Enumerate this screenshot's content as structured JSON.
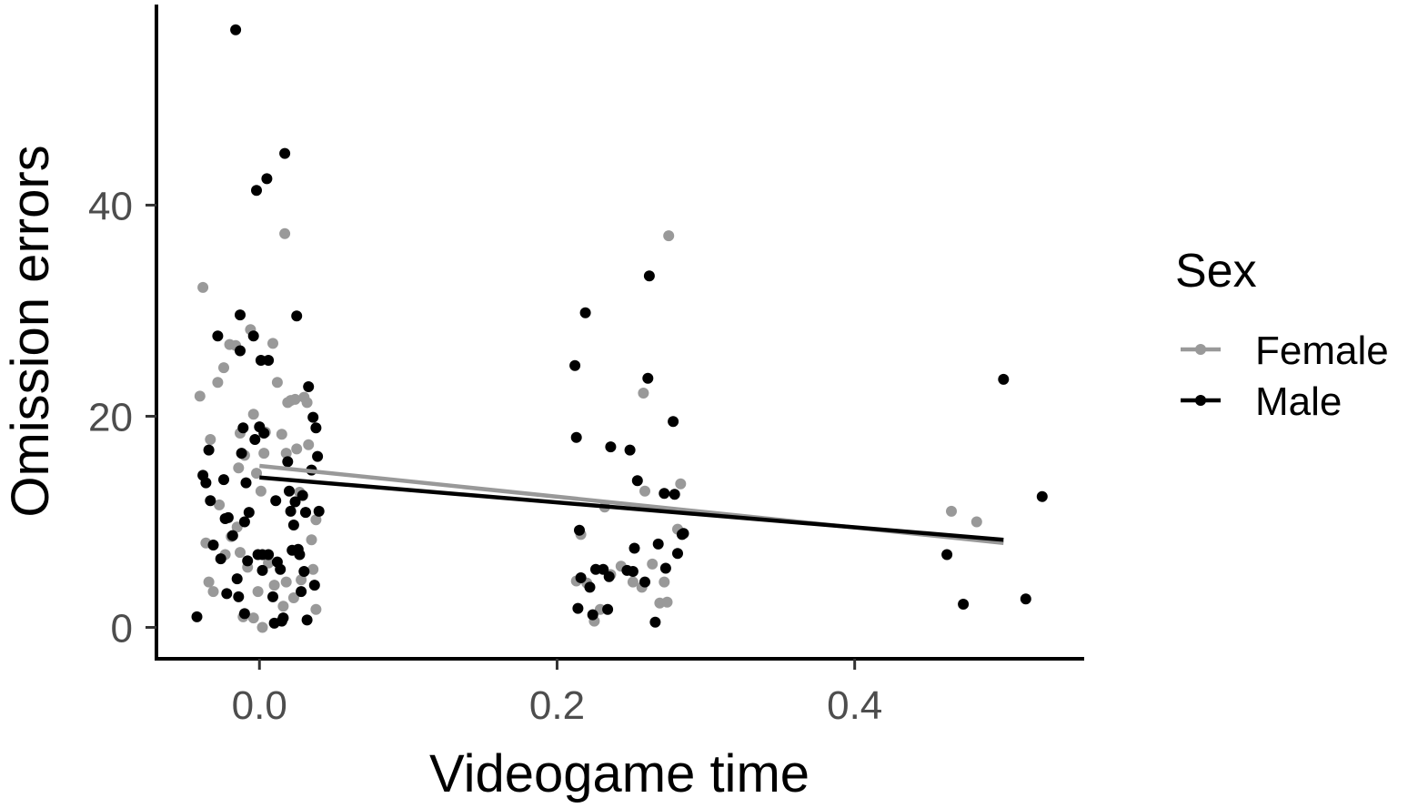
{
  "chart_data": {
    "type": "scatter",
    "title": "",
    "xlabel": "Videogame time",
    "ylabel": "Omission errors",
    "xlim": [
      -0.068,
      0.553
    ],
    "ylim": [
      -2.8,
      59.0
    ],
    "xticks": [
      {
        "value": 0.0,
        "label": "0.0"
      },
      {
        "value": 0.2,
        "label": "0.2"
      },
      {
        "value": 0.4,
        "label": "0.4"
      }
    ],
    "yticks": [
      {
        "value": 0,
        "label": "0"
      },
      {
        "value": 20,
        "label": "20"
      },
      {
        "value": 40,
        "label": "40"
      }
    ],
    "grid": false,
    "legend": {
      "title": "Sex",
      "position": "right"
    },
    "series": [
      {
        "name": "Female",
        "color": "#999999",
        "points": [
          [
            -0.038,
            32.2
          ],
          [
            -0.04,
            21.9
          ],
          [
            -0.033,
            17.8
          ],
          [
            -0.028,
            23.2
          ],
          [
            -0.024,
            24.6
          ],
          [
            -0.02,
            26.8
          ],
          [
            -0.016,
            26.7
          ],
          [
            -0.014,
            15.1
          ],
          [
            -0.013,
            18.4
          ],
          [
            -0.01,
            16.3
          ],
          [
            -0.006,
            28.2
          ],
          [
            -0.004,
            20.2
          ],
          [
            -0.002,
            14.6
          ],
          [
            0.001,
            12.9
          ],
          [
            0.004,
            18.5
          ],
          [
            0.003,
            16.5
          ],
          [
            0.009,
            26.9
          ],
          [
            0.012,
            23.2
          ],
          [
            0.015,
            18.3
          ],
          [
            0.017,
            37.3
          ],
          [
            0.018,
            16.5
          ],
          [
            0.019,
            21.3
          ],
          [
            0.021,
            21.5
          ],
          [
            0.024,
            21.6
          ],
          [
            0.025,
            16.9
          ],
          [
            0.027,
            12.8
          ],
          [
            0.03,
            21.8
          ],
          [
            0.032,
            21.3
          ],
          [
            0.033,
            17.3
          ],
          [
            0.035,
            8.3
          ],
          [
            0.038,
            10.2
          ],
          [
            -0.036,
            8.0
          ],
          [
            -0.034,
            4.3
          ],
          [
            -0.031,
            3.4
          ],
          [
            -0.027,
            11.6
          ],
          [
            -0.023,
            6.9
          ],
          [
            -0.019,
            8.6
          ],
          [
            -0.015,
            9.5
          ],
          [
            -0.013,
            7.1
          ],
          [
            -0.011,
            1.0
          ],
          [
            -0.008,
            5.7
          ],
          [
            -0.004,
            0.9
          ],
          [
            -0.001,
            3.4
          ],
          [
            0.002,
            0.0
          ],
          [
            0.006,
            6.1
          ],
          [
            0.01,
            4.0
          ],
          [
            0.016,
            2.0
          ],
          [
            0.018,
            4.3
          ],
          [
            0.023,
            2.8
          ],
          [
            0.028,
            4.5
          ],
          [
            0.031,
            10.9
          ],
          [
            0.036,
            5.5
          ],
          [
            0.038,
            1.7
          ],
          [
            0.213,
            4.4
          ],
          [
            0.216,
            8.8
          ],
          [
            0.22,
            4.2
          ],
          [
            0.225,
            0.6
          ],
          [
            0.229,
            1.7
          ],
          [
            0.232,
            11.4
          ],
          [
            0.236,
            5.0
          ],
          [
            0.243,
            5.8
          ],
          [
            0.251,
            4.3
          ],
          [
            0.257,
            3.8
          ],
          [
            0.258,
            22.2
          ],
          [
            0.259,
            12.9
          ],
          [
            0.264,
            6.0
          ],
          [
            0.269,
            2.3
          ],
          [
            0.272,
            4.3
          ],
          [
            0.274,
            2.4
          ],
          [
            0.275,
            37.1
          ],
          [
            0.281,
            9.3
          ],
          [
            0.283,
            13.6
          ],
          [
            0.465,
            11.0
          ],
          [
            0.482,
            10.0
          ]
        ],
        "trend": [
          [
            0.0,
            15.3
          ],
          [
            0.5,
            8.0
          ]
        ]
      },
      {
        "name": "Male",
        "color": "#000000",
        "points": [
          [
            -0.042,
            1.0
          ],
          [
            -0.038,
            14.4
          ],
          [
            -0.036,
            13.7
          ],
          [
            -0.034,
            16.8
          ],
          [
            -0.033,
            12.0
          ],
          [
            -0.031,
            7.8
          ],
          [
            -0.028,
            27.6
          ],
          [
            -0.026,
            6.5
          ],
          [
            -0.024,
            14.0
          ],
          [
            -0.023,
            10.3
          ],
          [
            -0.022,
            3.2
          ],
          [
            -0.021,
            10.4
          ],
          [
            -0.018,
            8.7
          ],
          [
            -0.016,
            56.6
          ],
          [
            -0.015,
            4.6
          ],
          [
            -0.014,
            2.9
          ],
          [
            -0.013,
            29.6
          ],
          [
            -0.013,
            26.2
          ],
          [
            -0.012,
            16.5
          ],
          [
            -0.011,
            18.9
          ],
          [
            -0.01,
            1.3
          ],
          [
            -0.01,
            10.0
          ],
          [
            -0.009,
            13.7
          ],
          [
            -0.008,
            6.3
          ],
          [
            -0.007,
            10.9
          ],
          [
            -0.004,
            27.6
          ],
          [
            -0.003,
            17.8
          ],
          [
            -0.002,
            41.4
          ],
          [
            -0.001,
            6.9
          ],
          [
            0.0,
            19.0
          ],
          [
            0.001,
            25.3
          ],
          [
            0.002,
            6.9
          ],
          [
            0.002,
            5.4
          ],
          [
            0.003,
            18.4
          ],
          [
            0.005,
            42.5
          ],
          [
            0.006,
            6.9
          ],
          [
            0.006,
            25.3
          ],
          [
            0.009,
            2.9
          ],
          [
            0.01,
            0.4
          ],
          [
            0.011,
            12.0
          ],
          [
            0.012,
            6.2
          ],
          [
            0.014,
            5.5
          ],
          [
            0.015,
            0.6
          ],
          [
            0.016,
            0.9
          ],
          [
            0.017,
            44.9
          ],
          [
            0.019,
            15.7
          ],
          [
            0.02,
            12.9
          ],
          [
            0.021,
            11.0
          ],
          [
            0.022,
            7.3
          ],
          [
            0.023,
            9.7
          ],
          [
            0.024,
            11.9
          ],
          [
            0.025,
            29.5
          ],
          [
            0.026,
            7.4
          ],
          [
            0.027,
            6.9
          ],
          [
            0.028,
            3.4
          ],
          [
            0.029,
            12.5
          ],
          [
            0.03,
            5.3
          ],
          [
            0.031,
            10.9
          ],
          [
            0.032,
            0.7
          ],
          [
            0.033,
            22.8
          ],
          [
            0.035,
            14.9
          ],
          [
            0.036,
            19.9
          ],
          [
            0.037,
            4.0
          ],
          [
            0.038,
            18.9
          ],
          [
            0.039,
            16.2
          ],
          [
            0.04,
            11.0
          ],
          [
            0.212,
            24.8
          ],
          [
            0.213,
            18.0
          ],
          [
            0.214,
            1.8
          ],
          [
            0.215,
            9.2
          ],
          [
            0.216,
            4.7
          ],
          [
            0.219,
            29.8
          ],
          [
            0.222,
            3.8
          ],
          [
            0.224,
            1.2
          ],
          [
            0.226,
            5.5
          ],
          [
            0.231,
            5.5
          ],
          [
            0.234,
            1.7
          ],
          [
            0.235,
            4.8
          ],
          [
            0.236,
            17.1
          ],
          [
            0.247,
            5.4
          ],
          [
            0.249,
            16.8
          ],
          [
            0.251,
            5.3
          ],
          [
            0.252,
            7.5
          ],
          [
            0.254,
            13.9
          ],
          [
            0.259,
            4.3
          ],
          [
            0.261,
            23.6
          ],
          [
            0.262,
            33.3
          ],
          [
            0.266,
            0.5
          ],
          [
            0.268,
            7.9
          ],
          [
            0.272,
            12.7
          ],
          [
            0.273,
            5.6
          ],
          [
            0.278,
            19.5
          ],
          [
            0.279,
            12.6
          ],
          [
            0.281,
            7.0
          ],
          [
            0.284,
            8.8
          ],
          [
            0.285,
            8.9
          ],
          [
            0.462,
            6.9
          ],
          [
            0.473,
            2.2
          ],
          [
            0.5,
            23.5
          ],
          [
            0.515,
            2.7
          ],
          [
            0.526,
            12.4
          ]
        ],
        "trend": [
          [
            0.0,
            14.2
          ],
          [
            0.5,
            8.3
          ]
        ]
      }
    ]
  }
}
